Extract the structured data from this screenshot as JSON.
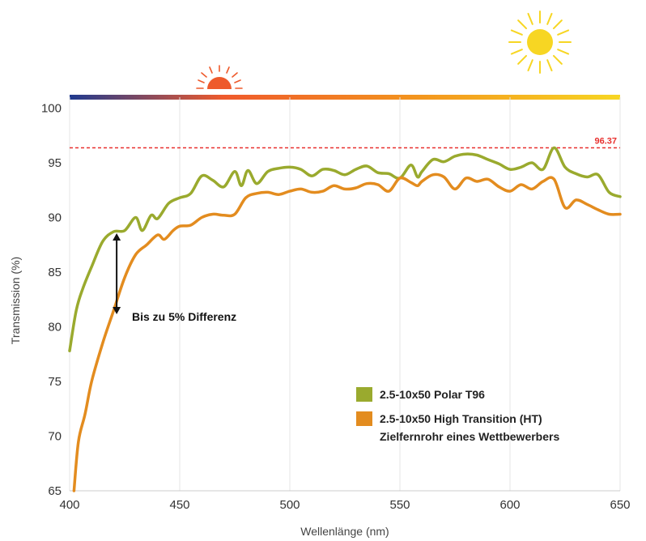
{
  "chart_data": {
    "type": "line",
    "xlabel": "Wellenlänge (nm)",
    "ylabel": "Transmission (%)",
    "xlim": [
      400,
      650
    ],
    "ylim": [
      65,
      101
    ],
    "x_ticks": [
      "400",
      "450",
      "500",
      "550",
      "600",
      "650"
    ],
    "y_ticks": [
      "65",
      "70",
      "75",
      "80",
      "85",
      "90",
      "95",
      "100"
    ],
    "grid": "vertical",
    "legend_placement": "bottom-right",
    "series": [
      {
        "name": "2.5-10x50 Polar T96",
        "color": "#9aaa2e",
        "x": [
          400,
          403,
          406,
          410,
          415,
          420,
          425,
          430,
          433,
          437,
          440,
          445,
          450,
          455,
          460,
          465,
          470,
          475,
          478,
          481,
          485,
          490,
          495,
          500,
          505,
          510,
          515,
          520,
          525,
          530,
          535,
          540,
          545,
          550,
          555,
          558,
          560,
          565,
          570,
          575,
          580,
          585,
          590,
          595,
          600,
          605,
          610,
          615,
          620,
          625,
          630,
          635,
          640,
          645,
          650
        ],
        "y": [
          77.8,
          81.5,
          83.5,
          85.5,
          87.8,
          88.7,
          88.8,
          90,
          88.8,
          90.2,
          89.9,
          91.3,
          91.8,
          92.2,
          93.8,
          93.4,
          92.8,
          94.2,
          92.9,
          94.3,
          93.1,
          94.2,
          94.5,
          94.6,
          94.4,
          93.8,
          94.4,
          94.3,
          93.9,
          94.4,
          94.7,
          94.1,
          94.0,
          93.6,
          94.8,
          93.7,
          94.2,
          95.3,
          95.1,
          95.6,
          95.8,
          95.7,
          95.3,
          94.9,
          94.4,
          94.6,
          95.0,
          94.4,
          96.37,
          94.6,
          94.0,
          93.7,
          93.9,
          92.3,
          91.9
        ]
      },
      {
        "name": "2.5-10x50 High Transition (HT) Zielfernrohr eines Wettbewerbers",
        "color": "#e38c1f",
        "x": [
          402,
          404,
          407,
          410,
          415,
          420,
          425,
          430,
          435,
          440,
          443,
          447,
          450,
          455,
          460,
          465,
          470,
          475,
          480,
          485,
          490,
          495,
          500,
          505,
          510,
          515,
          520,
          525,
          530,
          535,
          540,
          545,
          550,
          555,
          558,
          560,
          565,
          570,
          575,
          580,
          585,
          590,
          595,
          600,
          605,
          610,
          615,
          620,
          625,
          630,
          635,
          640,
          645,
          650
        ],
        "y": [
          65,
          69.5,
          72,
          75,
          78.5,
          81.5,
          84.5,
          86.6,
          87.5,
          88.4,
          88,
          88.8,
          89.2,
          89.3,
          90,
          90.3,
          90.2,
          90.3,
          91.8,
          92.2,
          92.3,
          92.1,
          92.4,
          92.6,
          92.3,
          92.4,
          92.9,
          92.6,
          92.7,
          93.1,
          93.0,
          92.4,
          93.6,
          93.2,
          92.9,
          93.3,
          93.9,
          93.7,
          92.6,
          93.6,
          93.3,
          93.5,
          92.8,
          92.4,
          93.0,
          92.6,
          93.3,
          93.5,
          90.9,
          91.6,
          91.2,
          90.7,
          90.3,
          90.3
        ]
      }
    ],
    "reference_line": {
      "value": 96.37,
      "label": "96.37",
      "color": "#e8312f"
    },
    "annotation": {
      "text": "Bis zu 5% Differenz",
      "x": 421,
      "y_from": 88.7,
      "y_to": 81
    }
  },
  "legend": {
    "item1": "2.5-10x50 Polar T96",
    "item2_line1": "2.5-10x50 High Transition (HT)",
    "item2_line2": "Zielfernrohr eines Wettbewerbers"
  },
  "gradient_bar": {
    "colors": [
      "#1f3a8f",
      "#ef5a2c",
      "#f3931e",
      "#f7d623"
    ]
  },
  "icons": [
    "sunrise-icon",
    "sun-icon"
  ]
}
